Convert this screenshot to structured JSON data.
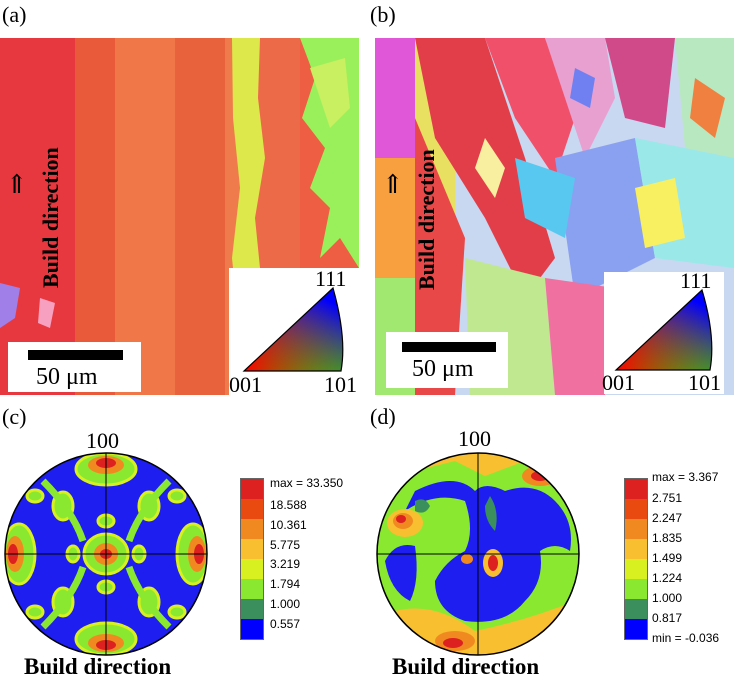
{
  "panels": {
    "a": {
      "label": "(a)",
      "rotated_text": "Build direction",
      "arrow": "⇑",
      "scale_text": "50 μm",
      "ipf": {
        "top": "111",
        "left": "001",
        "right": "101"
      }
    },
    "b": {
      "label": "(b)",
      "rotated_text": "Build direction",
      "arrow": "⇑",
      "scale_text": "50 μm",
      "ipf": {
        "top": "111",
        "left": "001",
        "right": "101"
      }
    },
    "c": {
      "label": "(c)",
      "pole": "100",
      "caption": "Build direction",
      "legend": [
        "max = 33.350",
        "18.588",
        "10.361",
        "5.775",
        "3.219",
        "1.794",
        "1.000",
        "0.557"
      ]
    },
    "d": {
      "label": "(d)",
      "pole": "100",
      "caption": "Build direction",
      "legend": [
        "max = 3.367",
        "2.751",
        "2.247",
        "1.835",
        "1.499",
        "1.224",
        "1.000",
        "0.817",
        "min = -0.036"
      ]
    }
  },
  "legend_colors_c": [
    "#dd2020",
    "#e84a10",
    "#f08a20",
    "#f8c030",
    "#d8f020",
    "#8ae830",
    "#3a8f5c",
    "#0000ff"
  ],
  "legend_colors_d": [
    "#dd2020",
    "#e84a10",
    "#f08a20",
    "#f8c030",
    "#d8f020",
    "#8ae830",
    "#3a8f5c",
    "#0000ff"
  ]
}
